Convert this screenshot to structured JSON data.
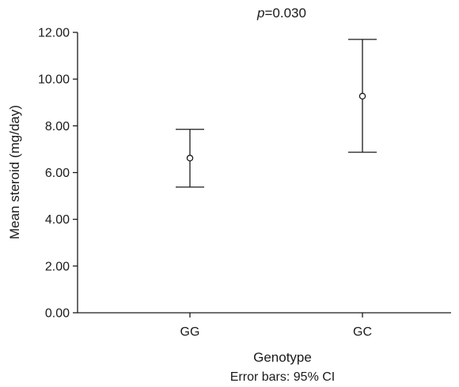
{
  "chart_data": {
    "type": "errorbar",
    "annotation": {
      "italic": "p",
      "rest": "=0.030"
    },
    "xlabel": "Genotype",
    "ylabel": "Mean steroid (mg/day)",
    "caption": "Error bars: 95% CI",
    "categories": [
      "GG",
      "GC"
    ],
    "means": [
      6.62,
      9.27
    ],
    "ci_lower": [
      5.38,
      6.87
    ],
    "ci_upper": [
      7.85,
      11.7
    ],
    "ylim": [
      0,
      12
    ],
    "yticks": [
      "0.00",
      "2.00",
      "4.00",
      "6.00",
      "8.00",
      "10.00",
      "12.00"
    ],
    "grid": false,
    "legend": "none"
  }
}
